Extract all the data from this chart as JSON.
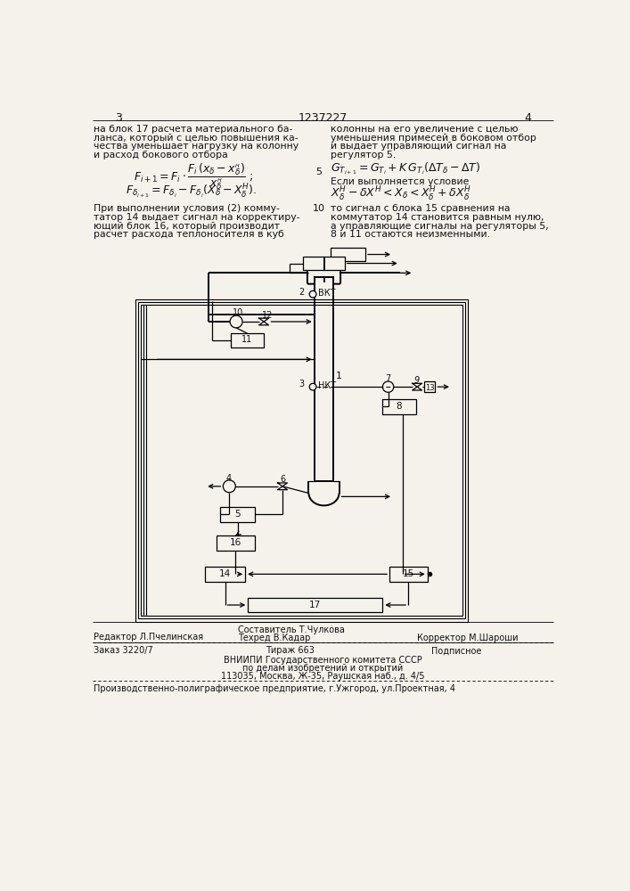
{
  "bg_color": "#f5f2ec",
  "page_num_left": "3",
  "page_num_center": "1237227",
  "page_num_right": "4",
  "text_left_col": [
    "на блок 17 расчета материального ба-",
    "ланса, который с целью повышения ка-",
    "чества уменьшает нагрузку на колонну",
    "и расход бокового отбора"
  ],
  "text_right_col": [
    "колонны на его увеличение с целью",
    "уменьшения примесей в боковом отбор",
    "и выдает управляющий сигнал на",
    "регулятор 5."
  ],
  "text_left_cond": [
    "При выполнении условия (2) комму-",
    "татор 14 выдает сигнал на корректиру-",
    "ющий блок 16, который производит",
    "расчет расхода теплоносителя в куб"
  ],
  "text_right_cond": [
    "то сигнал с блока 15 сравнения на",
    "коммутатор 14 становится равным нулю,",
    "а управляющие сигналы на регуляторы 5,",
    "8 и 11 остаются неизменными."
  ],
  "footer_line1_left": "Редактор Л.Пчелинская",
  "footer_line1_center": "Составитель Т.Чулкова",
  "footer_line2_center": "Техред В.Кадар",
  "footer_line2_right": "Корректор М.Шароши",
  "footer_line3_left": "Заказ 3220/7",
  "footer_line3_center": "Тираж 663",
  "footer_line3_right": "Подписное",
  "footer_line4": "ВНИИПИ Государственного комитета СССР",
  "footer_line5": "по делам изобретений и открытий",
  "footer_line6": "113035, Москва, Ж-35, Раушская наб., д. 4/5",
  "footer_line7": "Производственно-полиграфическое предприятие, г.Ужгород, ул.Проектная, 4"
}
